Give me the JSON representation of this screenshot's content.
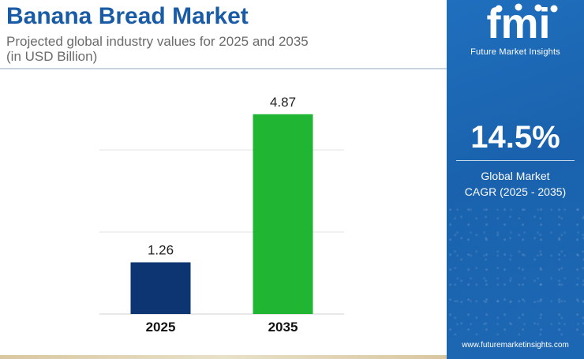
{
  "header": {
    "title": "Banana Bread Market",
    "subtitle_line1": "Projected global industry values for 2025 and 2035",
    "subtitle_line2": "(in USD Billion)"
  },
  "chart_data": {
    "type": "bar",
    "categories": [
      "2025",
      "2035"
    ],
    "values": [
      1.26,
      4.87
    ],
    "value_labels": [
      "1.26",
      "4.87"
    ],
    "colors": [
      "#0c3572",
      "#21b534"
    ],
    "ylim": [
      0,
      6
    ],
    "grid": true
  },
  "sidebar": {
    "brand_text": "fmi",
    "brand_caption": "Future Market Insights",
    "cagr_value": "14.5%",
    "cagr_label_line1": "Global Market",
    "cagr_label_line2": "CAGR (2025 - 2035)",
    "website": "www.futuremarketinsights.com",
    "background_color": "#1a62ad"
  }
}
